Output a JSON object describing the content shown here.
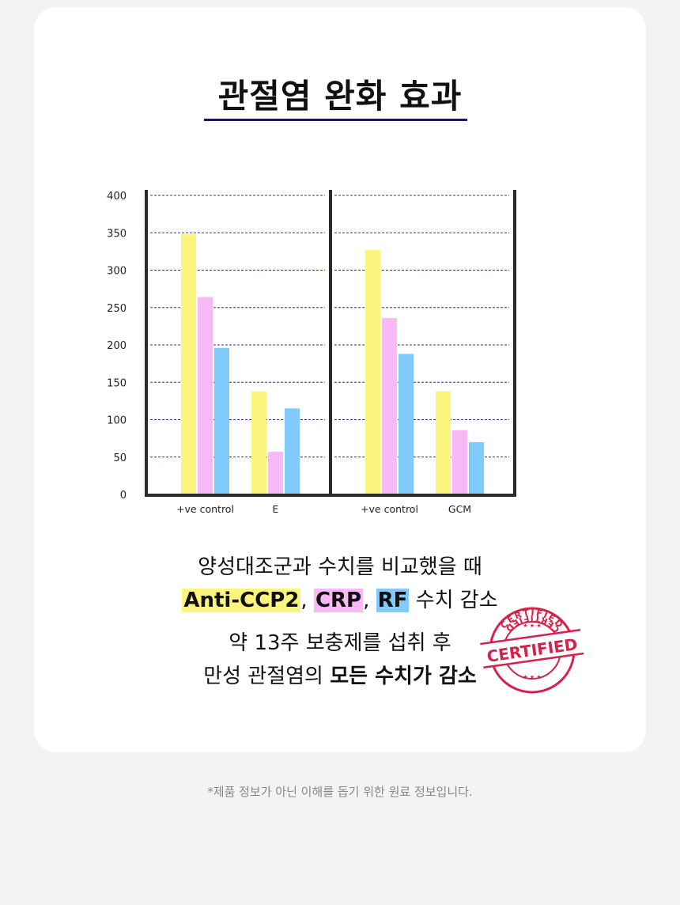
{
  "title": "관절염 완화 효과",
  "chart_data": {
    "type": "bar",
    "ylim": [
      0,
      400
    ],
    "yticks": [
      "0",
      "50",
      "100",
      "150",
      "200",
      "250",
      "300",
      "350",
      "400"
    ],
    "grid": true,
    "panels": [
      {
        "categories": [
          "+ve control",
          "E"
        ],
        "series": [
          {
            "name": "Anti-CCP2",
            "values": [
              348,
              138
            ]
          },
          {
            "name": "CRP",
            "values": [
              264,
              57
            ]
          },
          {
            "name": "RF",
            "values": [
              196,
              115
            ]
          }
        ]
      },
      {
        "categories": [
          "+ve control",
          "GCM"
        ],
        "series": [
          {
            "name": "Anti-CCP2",
            "values": [
              327,
              138
            ]
          },
          {
            "name": "CRP",
            "values": [
              236,
              86
            ]
          },
          {
            "name": "RF",
            "values": [
              188,
              70
            ]
          }
        ]
      }
    ],
    "colors": {
      "Anti-CCP2": "#fbf57e",
      "CRP": "#f8b9f6",
      "RF": "#80cbfb"
    }
  },
  "text": {
    "line1": "양성대조군과 수치를 비교했을 때",
    "marker1": "Anti-CCP2",
    "sep1": ",",
    "marker2": "CRP",
    "sep2": ",",
    "marker3": "RF",
    "line2_tail": "수치 감소",
    "line3": "약 13주 보충제를 섭취 후",
    "line4_normal": "만성 관절염의",
    "line4_bold": "모든 수치가 감소"
  },
  "stamp": {
    "main": "CERTIFIED",
    "ring": "CERTIFIED",
    "color": "#d7204a"
  },
  "footnote": "*제품 정보가 아닌 이해를 돕기 위한 원료 정보입니다."
}
